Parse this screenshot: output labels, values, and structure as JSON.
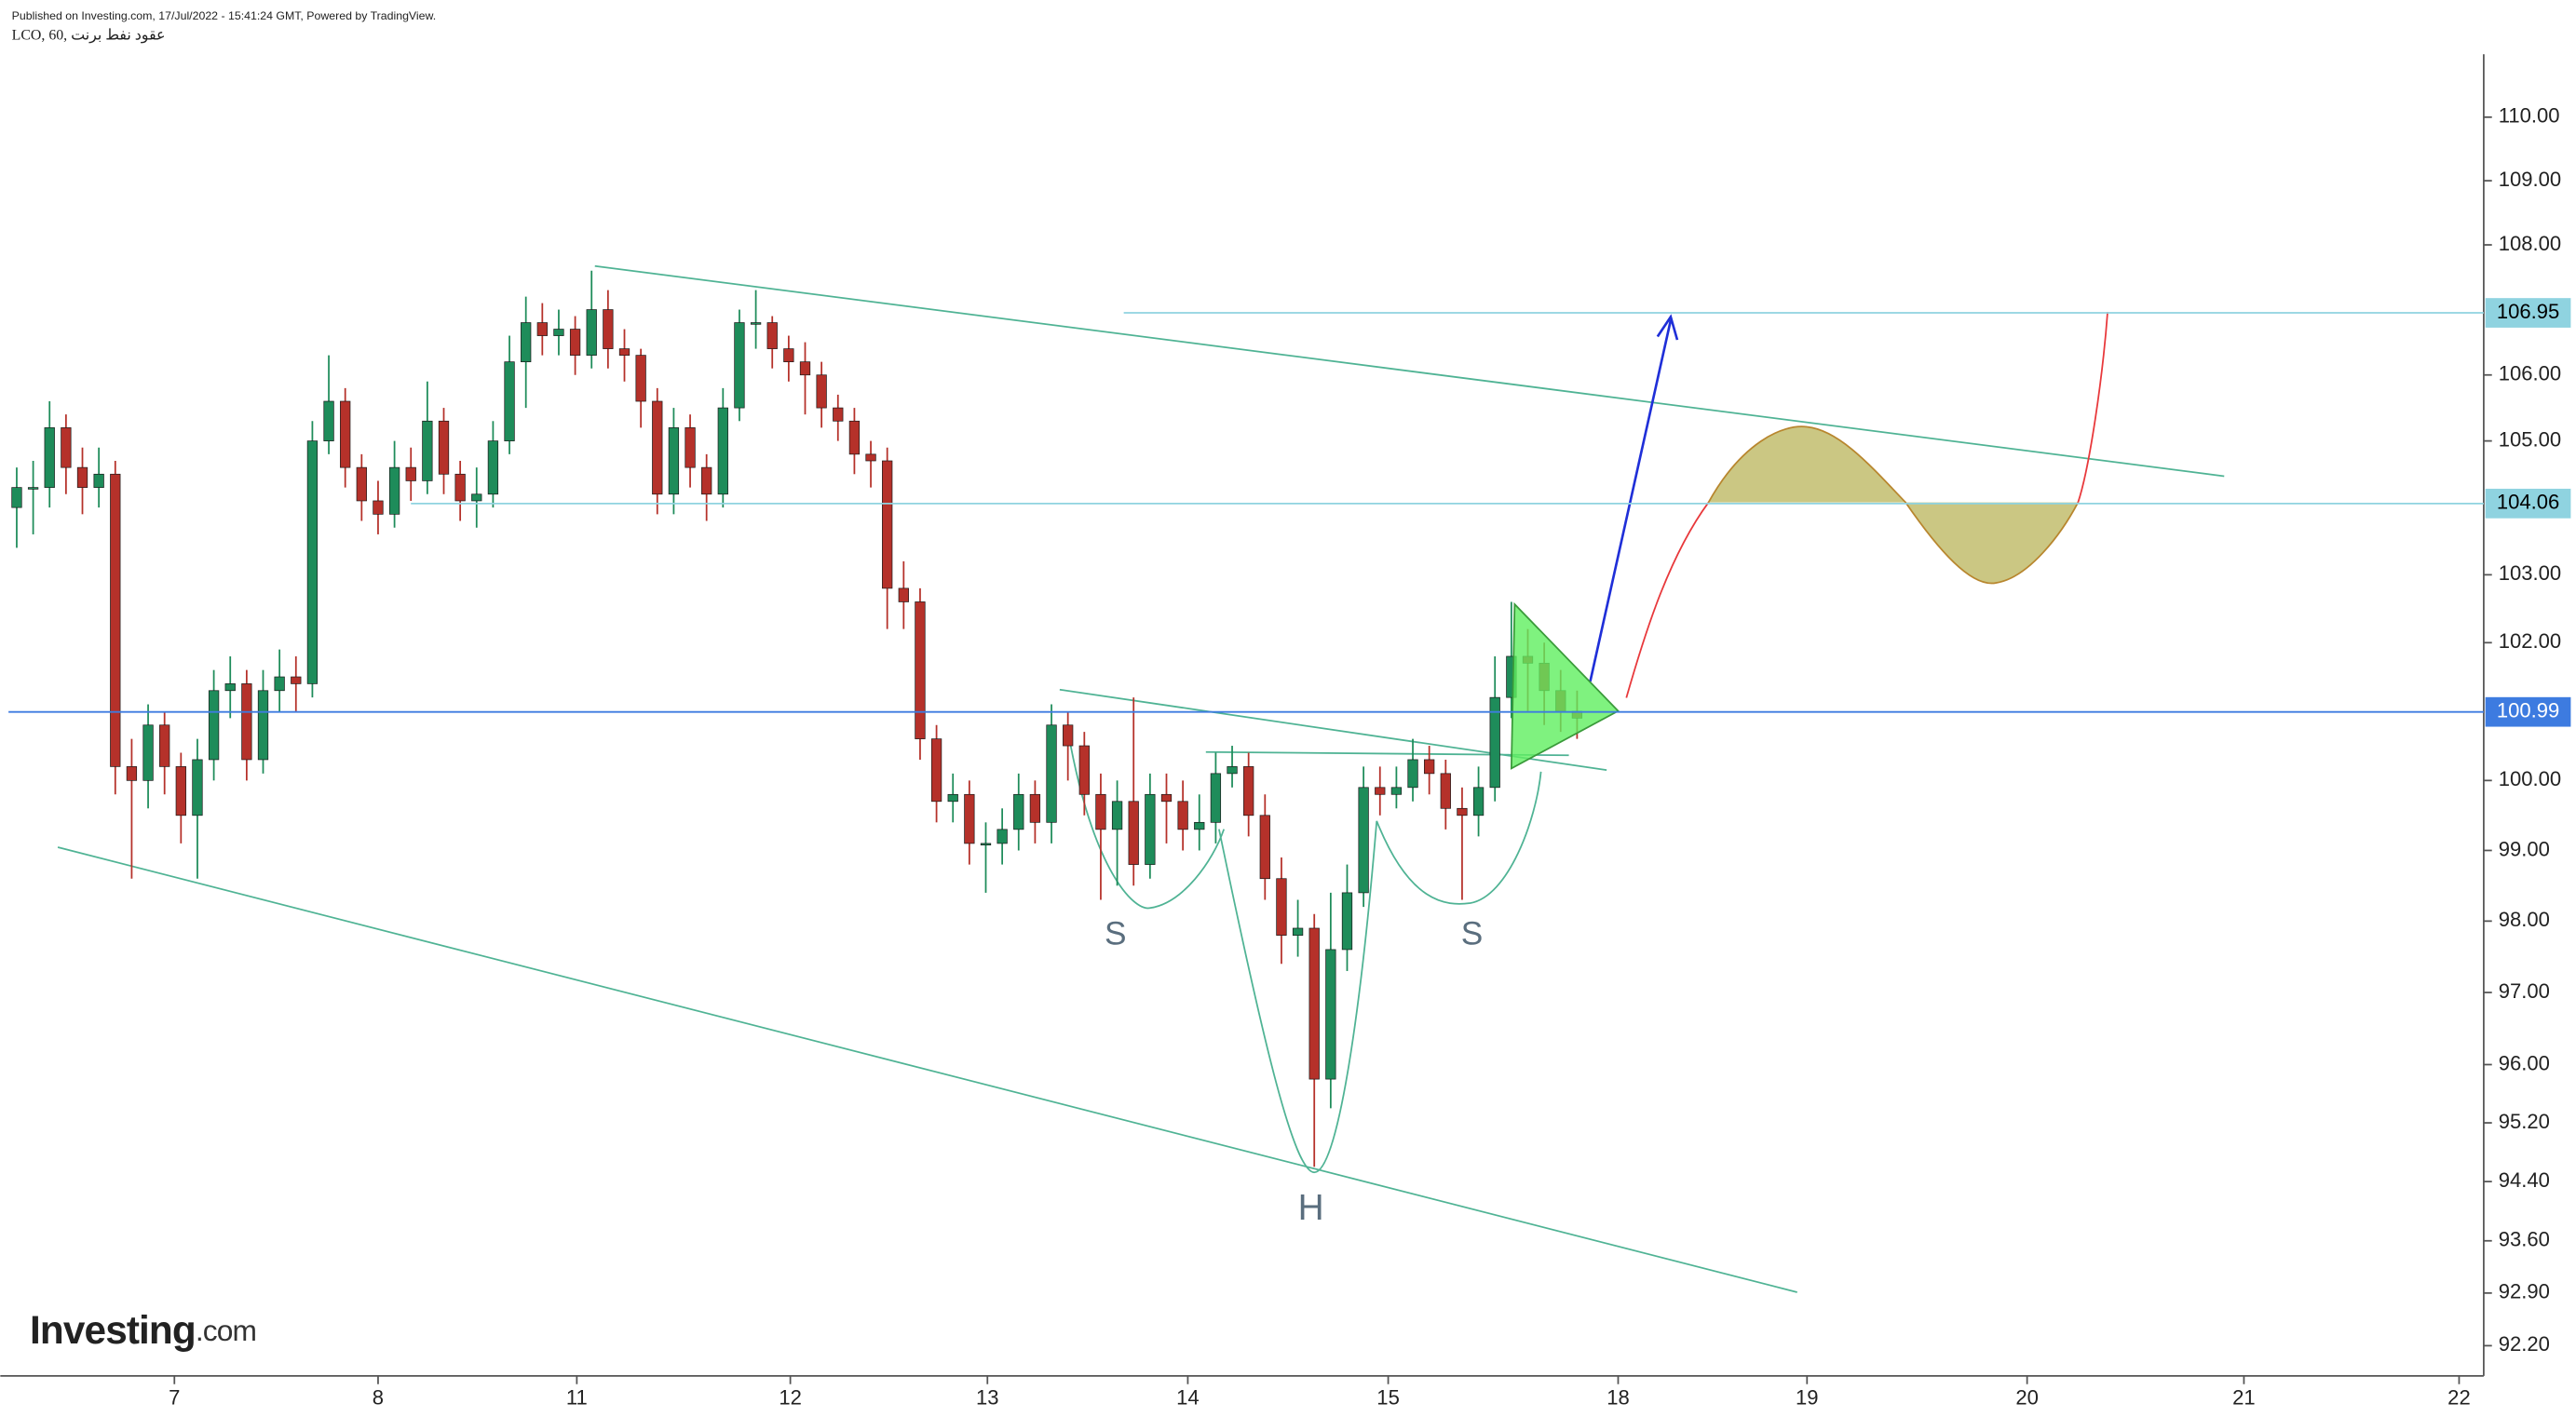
{
  "chart_data": {
    "type": "candlestick",
    "header": "Published on Investing.com, 17/Jul/2022 - 15:41:24 GMT, Powered by TradingView.",
    "title": "LCO, 60, عقود نفط برنت",
    "logo": "Investing",
    "logo_suffix": ".com",
    "annotations": [
      "S",
      "H",
      "S"
    ],
    "up_color": "#1e8c5a",
    "down_color": "#b5312a",
    "log_scale": true,
    "open": [
      104.0,
      104.3,
      104.3,
      105.2,
      104.6,
      104.3,
      104.5,
      100.2,
      100.0,
      100.8,
      100.2,
      99.5,
      100.3,
      101.3,
      101.4,
      100.3,
      101.3,
      101.5,
      101.4,
      105.0,
      105.6,
      104.6,
      104.1,
      103.9,
      104.6,
      104.4,
      105.3,
      104.5,
      104.1,
      104.2,
      105.0,
      106.2,
      106.8,
      106.6,
      106.7,
      106.3,
      107.0,
      106.4,
      106.3,
      105.6,
      104.2,
      105.2,
      104.6,
      104.2,
      105.5,
      106.8,
      106.8,
      106.4,
      106.2,
      106.0,
      105.5,
      105.3,
      104.8,
      104.7,
      102.8,
      102.6,
      100.6,
      99.7,
      99.8,
      99.1,
      99.1,
      99.3,
      99.8,
      99.4,
      100.8,
      100.5,
      99.8,
      99.3,
      99.7,
      98.8,
      99.8,
      99.7,
      99.3,
      99.4,
      100.1,
      100.2,
      99.5,
      98.6,
      97.8,
      97.9,
      95.8,
      97.6,
      98.4,
      99.9,
      99.8,
      99.9,
      100.3,
      100.1,
      99.6,
      99.5,
      99.9,
      101.2,
      101.8,
      101.7,
      101.3,
      101.0
    ],
    "high": [
      104.6,
      104.7,
      105.6,
      105.4,
      104.9,
      104.9,
      104.7,
      100.6,
      101.1,
      101.0,
      100.4,
      100.6,
      101.6,
      101.8,
      101.6,
      101.6,
      101.9,
      101.8,
      105.3,
      106.3,
      105.8,
      104.8,
      104.4,
      105.0,
      104.9,
      105.9,
      105.5,
      104.7,
      104.6,
      105.3,
      106.6,
      107.2,
      107.1,
      107.0,
      106.9,
      107.6,
      107.3,
      106.7,
      106.4,
      105.8,
      105.5,
      105.4,
      104.8,
      105.8,
      107.0,
      107.3,
      106.9,
      106.6,
      106.5,
      106.2,
      105.7,
      105.5,
      105.0,
      104.9,
      103.2,
      102.8,
      100.8,
      100.1,
      100.0,
      99.4,
      99.6,
      100.1,
      100.0,
      101.1,
      101.0,
      100.7,
      100.1,
      100.0,
      101.2,
      100.1,
      100.1,
      100.0,
      99.8,
      100.4,
      100.5,
      100.4,
      99.8,
      98.9,
      98.3,
      98.1,
      98.4,
      98.8,
      100.2,
      100.2,
      100.2,
      100.6,
      100.5,
      100.3,
      99.9,
      100.2,
      101.8,
      102.6,
      102.2,
      102.0,
      101.6,
      101.3
    ],
    "low": [
      103.4,
      103.6,
      104.0,
      104.2,
      103.9,
      104.0,
      99.8,
      98.6,
      99.6,
      99.8,
      99.1,
      98.6,
      100.0,
      100.9,
      100.0,
      100.1,
      101.0,
      101.0,
      101.2,
      104.8,
      104.3,
      103.8,
      103.6,
      103.7,
      104.1,
      104.2,
      104.2,
      103.8,
      103.7,
      104.0,
      104.8,
      105.5,
      106.3,
      106.3,
      106.0,
      106.1,
      106.1,
      105.9,
      105.2,
      103.9,
      103.9,
      104.3,
      103.8,
      104.0,
      105.3,
      106.4,
      106.1,
      105.9,
      105.4,
      105.2,
      105.0,
      104.5,
      104.3,
      102.2,
      102.2,
      100.3,
      99.4,
      99.4,
      98.8,
      98.4,
      98.8,
      99.0,
      99.1,
      99.1,
      100.0,
      99.5,
      98.3,
      98.5,
      98.5,
      98.6,
      99.1,
      99.0,
      99.0,
      99.1,
      99.9,
      99.2,
      98.3,
      97.4,
      97.5,
      94.6,
      95.4,
      97.3,
      98.2,
      99.5,
      99.6,
      99.7,
      99.8,
      99.3,
      98.3,
      99.2,
      99.7,
      100.9,
      101.0,
      100.8,
      100.7,
      100.6
    ],
    "close": [
      104.3,
      104.3,
      105.2,
      104.6,
      104.3,
      104.5,
      100.2,
      100.0,
      100.8,
      100.2,
      99.5,
      100.3,
      101.3,
      101.4,
      100.3,
      101.3,
      101.5,
      101.4,
      105.0,
      105.6,
      104.6,
      104.1,
      103.9,
      104.6,
      104.4,
      105.3,
      104.5,
      104.1,
      104.2,
      105.0,
      106.2,
      106.8,
      106.6,
      106.7,
      106.3,
      107.0,
      106.4,
      106.3,
      105.6,
      104.2,
      105.2,
      104.6,
      104.2,
      105.5,
      106.8,
      106.8,
      106.4,
      106.2,
      106.0,
      105.5,
      105.3,
      104.8,
      104.7,
      102.8,
      102.6,
      100.6,
      99.7,
      99.8,
      99.1,
      99.1,
      99.3,
      99.8,
      99.4,
      100.8,
      100.5,
      99.8,
      99.3,
      99.7,
      98.8,
      99.8,
      99.7,
      99.3,
      99.4,
      100.1,
      100.2,
      99.5,
      98.6,
      97.8,
      97.9,
      95.8,
      97.6,
      98.4,
      99.9,
      99.8,
      99.9,
      100.3,
      100.1,
      99.6,
      99.5,
      99.9,
      101.2,
      101.8,
      101.7,
      101.3,
      101.0,
      100.9
    ],
    "xlim": [
      -1,
      150.2
    ],
    "xticks": [
      {
        "value": 9.6,
        "label": "7"
      },
      {
        "value": 22,
        "label": "8"
      },
      {
        "value": 34.1,
        "label": "11"
      },
      {
        "value": 47.1,
        "label": "12"
      },
      {
        "value": 59.1,
        "label": "13"
      },
      {
        "value": 71.3,
        "label": "14"
      },
      {
        "value": 83.5,
        "label": "15"
      },
      {
        "value": 97.5,
        "label": "18"
      },
      {
        "value": 109,
        "label": "19"
      },
      {
        "value": 122.4,
        "label": "20"
      },
      {
        "value": 135.6,
        "label": "21"
      },
      {
        "value": 148.7,
        "label": "22"
      }
    ],
    "ylim": [
      91.8,
      111.0
    ],
    "yticks": [
      {
        "value": 110,
        "label": "110.00"
      },
      {
        "value": 109,
        "label": "109.00"
      },
      {
        "value": 108,
        "label": "108.00"
      },
      {
        "value": 106,
        "label": "106.00"
      },
      {
        "value": 105,
        "label": "105.00"
      },
      {
        "value": 103,
        "label": "103.00"
      },
      {
        "value": 102,
        "label": "102.00"
      },
      {
        "value": 100,
        "label": "100.00"
      },
      {
        "value": 99,
        "label": "99.00"
      },
      {
        "value": 98,
        "label": "98.00"
      },
      {
        "value": 97,
        "label": "97.00"
      },
      {
        "value": 96,
        "label": "96.00"
      },
      {
        "value": 95.2,
        "label": "95.20"
      },
      {
        "value": 94.4,
        "label": "94.40"
      },
      {
        "value": 93.6,
        "label": "93.60"
      },
      {
        "value": 92.9,
        "label": "92.90"
      },
      {
        "value": 92.2,
        "label": "92.20"
      }
    ],
    "levels": [
      {
        "value": 106.95,
        "color": "#8fd3e0",
        "text_color": "#000000"
      },
      {
        "value": 104.06,
        "color": "#8fd3e0",
        "text_color": "#000000"
      },
      {
        "value": 100.99,
        "color": "#3d7be0",
        "text_color": "#ffffff"
      }
    ]
  }
}
